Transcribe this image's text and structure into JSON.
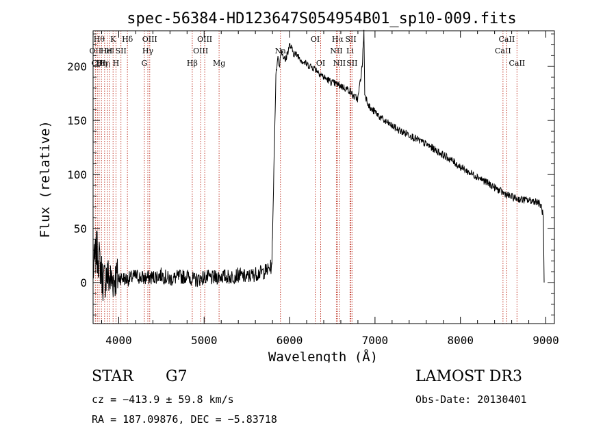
{
  "chart_data": {
    "type": "line",
    "title": "spec-56384-HD123647S054954B01_sp10-009.fits",
    "xlabel": "Wavelength (Å)",
    "ylabel": "Flux (relative)",
    "xlim": [
      3700,
      9100
    ],
    "ylim": [
      -38,
      233
    ],
    "xticks": [
      4000,
      5000,
      6000,
      7000,
      8000,
      9000
    ],
    "yticks": [
      0,
      50,
      100,
      150,
      200
    ],
    "series": [
      {
        "name": "spectrum",
        "x": [
          3700,
          3740,
          3780,
          3820,
          3860,
          3900,
          3950,
          4000,
          4100,
          4200,
          4300,
          4400,
          4500,
          4600,
          4700,
          4800,
          4900,
          5000,
          5100,
          5200,
          5300,
          5400,
          5500,
          5600,
          5700,
          5750,
          5790,
          5800,
          5820,
          5840,
          5860,
          5880,
          5900,
          5950,
          6000,
          6050,
          6100,
          6150,
          6200,
          6300,
          6400,
          6500,
          6600,
          6700,
          6750,
          6800,
          6850,
          6870,
          6880,
          6900,
          6950,
          7000,
          7100,
          7200,
          7300,
          7400,
          7500,
          7600,
          7700,
          7800,
          7900,
          8000,
          8100,
          8200,
          8300,
          8400,
          8500,
          8600,
          8700,
          8800,
          8900,
          8950,
          8970,
          8980
        ],
        "y": [
          10,
          30,
          18,
          0,
          8,
          2,
          4,
          5,
          3,
          6,
          4,
          5,
          7,
          3,
          5,
          6,
          2,
          5,
          4,
          6,
          5,
          7,
          5,
          8,
          10,
          12,
          15,
          40,
          120,
          190,
          210,
          200,
          215,
          205,
          220,
          212,
          210,
          205,
          202,
          198,
          190,
          185,
          182,
          178,
          172,
          170,
          200,
          233,
          175,
          170,
          160,
          158,
          150,
          145,
          140,
          137,
          132,
          128,
          123,
          118,
          113,
          107,
          102,
          98,
          93,
          88,
          83,
          79,
          77,
          76,
          75,
          70,
          60,
          0
        ]
      }
    ],
    "lines": [
      {
        "x": 3727,
        "labels": [
          "OII"
        ],
        "row": 2
      },
      {
        "x": 3750,
        "labels": [
          "CII"
        ],
        "row": 3
      },
      {
        "x": 3771,
        "labels": [
          "Hθ"
        ],
        "row": 1
      },
      {
        "x": 3798,
        "labels": [
          "Hη"
        ],
        "row": 3
      },
      {
        "x": 3835,
        "labels": [
          "Hη"
        ],
        "row": 3
      },
      {
        "x": 3869,
        "labels": [
          "HeI"
        ],
        "row": 2
      },
      {
        "x": 3889,
        "labels": [
          "H"
        ],
        "row": 2
      },
      {
        "x": 3934,
        "labels": [
          "K"
        ],
        "row": 1
      },
      {
        "x": 3968,
        "labels": [
          "H"
        ],
        "row": 3
      },
      {
        "x": 4026,
        "labels": [
          "SII"
        ],
        "row": 2
      },
      {
        "x": 4102,
        "labels": [
          "Hδ"
        ],
        "row": 1
      },
      {
        "x": 4300,
        "labels": [
          "G"
        ],
        "row": 3
      },
      {
        "x": 4341,
        "labels": [
          "Hγ"
        ],
        "row": 2
      },
      {
        "x": 4363,
        "labels": [
          "OIII"
        ],
        "row": 1
      },
      {
        "x": 4861,
        "labels": [
          "Hβ"
        ],
        "row": 3
      },
      {
        "x": 4959,
        "labels": [
          "OIII"
        ],
        "row": 2
      },
      {
        "x": 5007,
        "labels": [
          "OIII"
        ],
        "row": 1
      },
      {
        "x": 5175,
        "labels": [
          "Mg"
        ],
        "row": 3
      },
      {
        "x": 5893,
        "labels": [
          "Na"
        ],
        "row": 2
      },
      {
        "x": 6300,
        "labels": [
          "OI"
        ],
        "row": 1
      },
      {
        "x": 6364,
        "labels": [
          "OI"
        ],
        "row": 3
      },
      {
        "x": 6548,
        "labels": [
          "NII"
        ],
        "row": 2
      },
      {
        "x": 6563,
        "labels": [
          "Hα"
        ],
        "row": 1
      },
      {
        "x": 6584,
        "labels": [
          "NII"
        ],
        "row": 3
      },
      {
        "x": 6708,
        "labels": [
          "Li"
        ],
        "row": 2
      },
      {
        "x": 6717,
        "labels": [
          "SII"
        ],
        "row": 1
      },
      {
        "x": 6731,
        "labels": [
          "SII"
        ],
        "row": 3
      },
      {
        "x": 8498,
        "labels": [
          "CaII"
        ],
        "row": 2
      },
      {
        "x": 8542,
        "labels": [
          "CaII"
        ],
        "row": 1
      },
      {
        "x": 8662,
        "labels": [
          "CaII"
        ],
        "row": 3
      }
    ]
  },
  "info": {
    "class_label": "STAR",
    "subclass": "G7",
    "survey": "LAMOST DR3",
    "cz": "cz = −413.9 ± 59.8 km/s",
    "obs_date": "Obs-Date: 20130401",
    "radec": "RA = 187.09876, DEC =  −5.83718"
  }
}
